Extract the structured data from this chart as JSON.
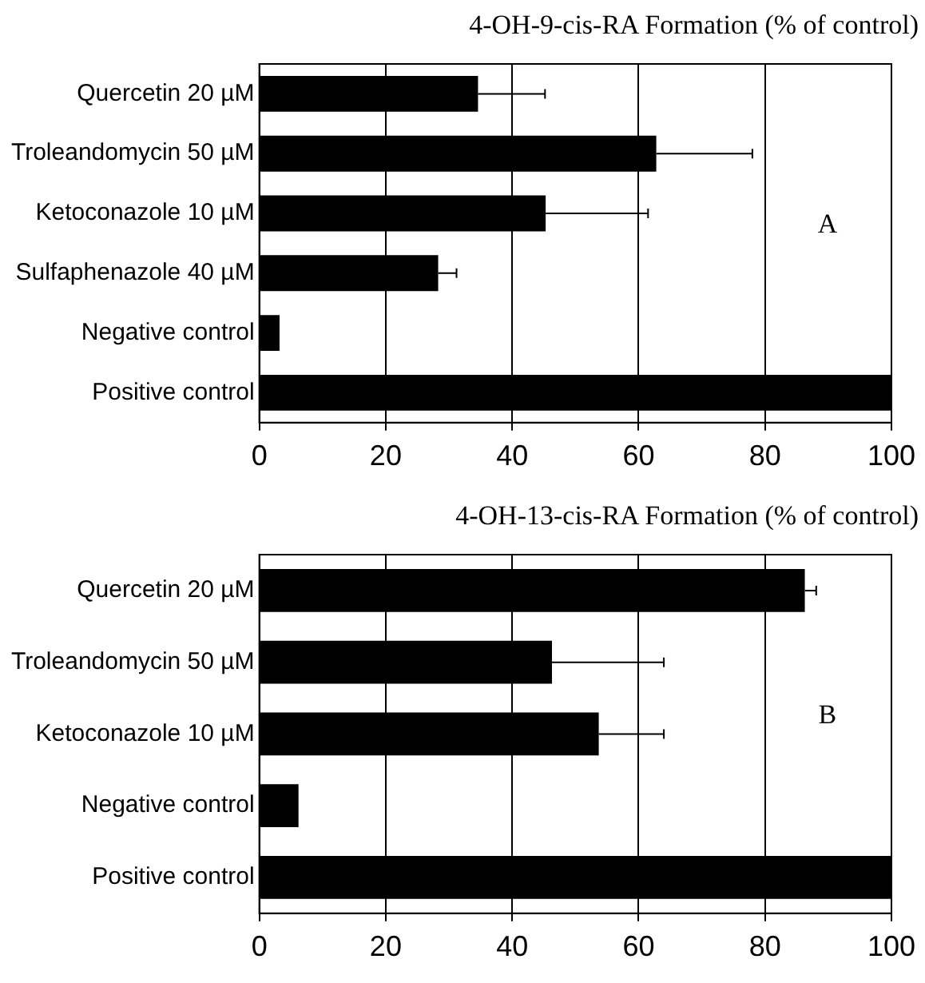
{
  "chart_data": [
    {
      "type": "bar",
      "orientation": "horizontal",
      "title": "4-OH-9-cis-RA Formation (% of control)",
      "categories": [
        "Quercetin 20 µM",
        "Troleandomycin 50 µM",
        "Ketoconazole 10 µM",
        "Sulfaphenazole 40 µM",
        "Negative control",
        "Positive control"
      ],
      "values": [
        34.6,
        62.8,
        45.3,
        28.3,
        3.2,
        100
      ],
      "color": "#000000",
      "errors": [
        [
          34.6,
          45.2
        ],
        [
          62.8,
          78
        ],
        [
          45.3,
          61.5
        ],
        [
          28.3,
          31.2
        ],
        null,
        null
      ],
      "xlim": [
        0,
        100
      ],
      "xticks": [
        0,
        20,
        40,
        60,
        80,
        100
      ],
      "grid": "x",
      "legend": false,
      "annotations": [
        "A"
      ]
    },
    {
      "type": "bar",
      "orientation": "horizontal",
      "title": "4-OH-13-cis-RA Formation (% of control)",
      "categories": [
        "Quercetin 20 µM",
        "Troleandomycin 50 µM",
        "Ketoconazole 10 µM",
        "Negative control",
        "Positive control"
      ],
      "values": [
        86.3,
        46.3,
        53.7,
        6.2,
        100
      ],
      "color": "#000000",
      "errors": [
        [
          86.3,
          88.1
        ],
        [
          46.3,
          64
        ],
        [
          53.7,
          64
        ],
        null,
        null
      ],
      "xlim": [
        0,
        100
      ],
      "xticks": [
        0,
        20,
        40,
        60,
        80,
        100
      ],
      "grid": "x",
      "legend": false,
      "annotations": [
        "B"
      ]
    }
  ]
}
